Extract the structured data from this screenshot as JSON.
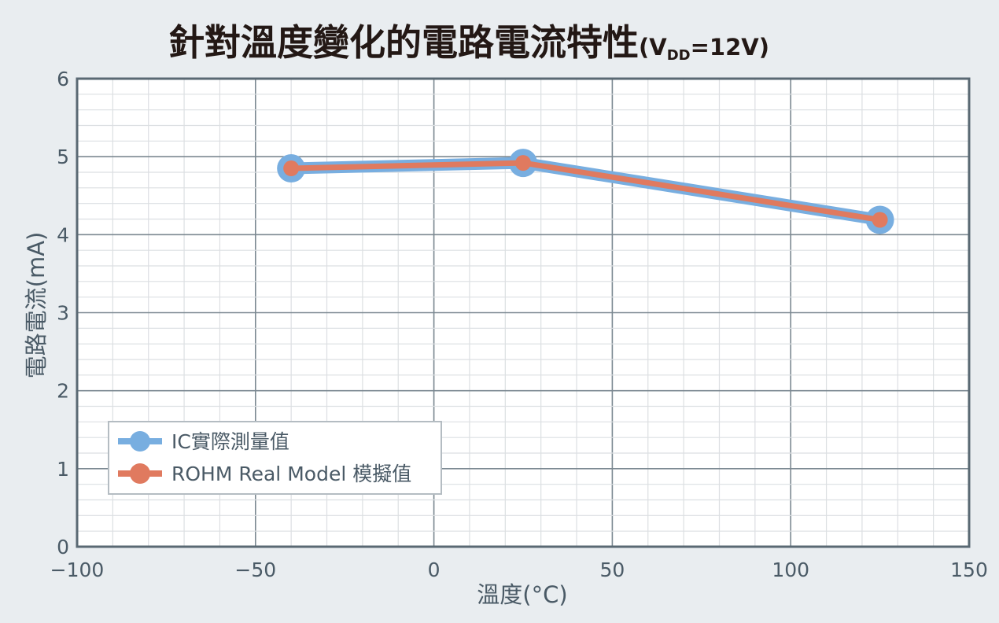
{
  "chart_data": {
    "type": "line",
    "title": "針對溫度變化的電路電流特性",
    "title_suffix": {
      "open": "(V",
      "subscript": "DD",
      "close": "=12V)"
    },
    "xlabel": "溫度(°C)",
    "ylabel": "電路電流(mA)",
    "xlim": [
      -100,
      150
    ],
    "ylim": [
      0,
      6
    ],
    "xticks": [
      -100,
      -50,
      0,
      50,
      100,
      150
    ],
    "xtick_labels": [
      "−100",
      "−50",
      "0",
      "50",
      "100",
      "150"
    ],
    "yticks": [
      0,
      1,
      2,
      3,
      4,
      5,
      6
    ],
    "ytick_labels": [
      "0",
      "1",
      "2",
      "3",
      "4",
      "5",
      "6"
    ],
    "grid": true,
    "legend_position": "bottom-left",
    "series": [
      {
        "name": "IC實際測量值",
        "color": "#78aee0",
        "x": [
          -40,
          25,
          125
        ],
        "y": [
          4.85,
          4.92,
          4.19
        ]
      },
      {
        "name": "ROHM Real Model 模擬值",
        "color": "#e07a5f",
        "x": [
          -40,
          25,
          125
        ],
        "y": [
          4.85,
          4.92,
          4.19
        ]
      }
    ]
  }
}
